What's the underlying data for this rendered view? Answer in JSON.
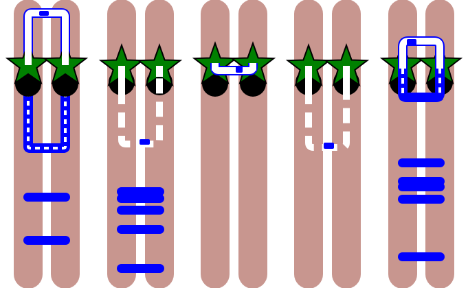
{
  "colors": {
    "background": "#ffffff",
    "rod": "#c8968f",
    "band": "#0000ff",
    "loop": "#ffffff",
    "star": "#008000",
    "dot": "#000000"
  },
  "icons": {
    "marker": "star-icon",
    "dot": "filled-circle-icon"
  },
  "figure": {
    "panel_count": 5
  }
}
